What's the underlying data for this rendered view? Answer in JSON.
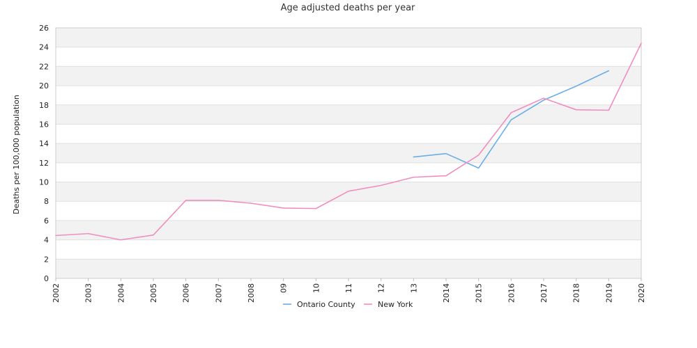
{
  "chart_data": {
    "type": "line",
    "title": "Age adjusted deaths per year",
    "xlabel": "",
    "ylabel": "Deaths per 100,000 population",
    "categories": [
      "2002",
      "2003",
      "2004",
      "2005",
      "2006",
      "2007",
      "2008",
      "09",
      "10",
      "11",
      "12",
      "13",
      "2014",
      "2015",
      "2016",
      "2017",
      "2018",
      "2019",
      "2020"
    ],
    "ylim": [
      0,
      26
    ],
    "yticks": [
      0,
      2,
      4,
      6,
      8,
      10,
      12,
      14,
      16,
      18,
      20,
      22,
      24,
      26
    ],
    "grid": "alternating horizontal bands",
    "legend_position": "bottom-center",
    "series": [
      {
        "name": "Ontario County",
        "color": "#6aaee8",
        "values": [
          null,
          null,
          null,
          null,
          null,
          null,
          null,
          null,
          null,
          null,
          null,
          12.6,
          12.95,
          11.45,
          16.45,
          18.5,
          19.95,
          21.55,
          null
        ]
      },
      {
        "name": "New York",
        "color": "#f08ec0",
        "values": [
          4.45,
          4.65,
          4.0,
          4.5,
          8.1,
          8.1,
          7.8,
          7.3,
          7.25,
          9.05,
          9.65,
          10.5,
          10.65,
          12.8,
          17.2,
          18.7,
          17.5,
          17.45,
          24.4
        ]
      }
    ]
  }
}
